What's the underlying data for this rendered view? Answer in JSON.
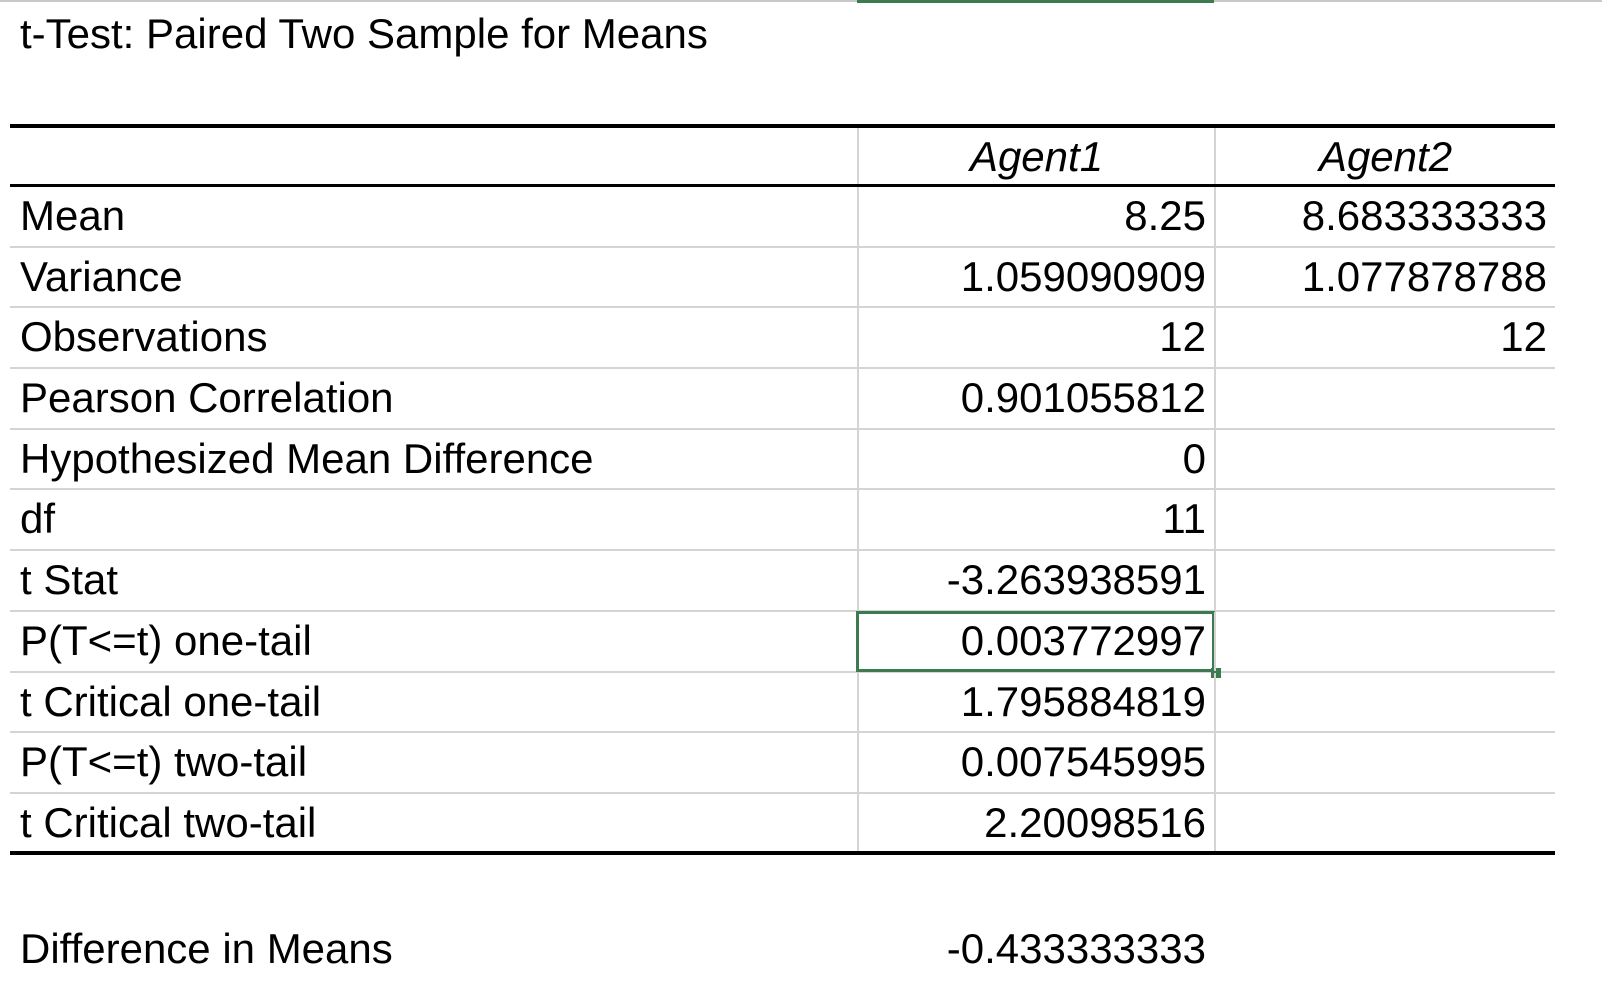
{
  "title": "t-Test: Paired Two Sample for Means",
  "columns": [
    "",
    "Agent1",
    "Agent2"
  ],
  "rows": [
    {
      "label": "Mean",
      "agent1": "8.25",
      "agent2": "8.683333333"
    },
    {
      "label": "Variance",
      "agent1": "1.059090909",
      "agent2": "1.077878788"
    },
    {
      "label": "Observations",
      "agent1": "12",
      "agent2": "12"
    },
    {
      "label": "Pearson Correlation",
      "agent1": "0.901055812",
      "agent2": ""
    },
    {
      "label": "Hypothesized Mean Difference",
      "agent1": "0",
      "agent2": ""
    },
    {
      "label": "df",
      "agent1": "11",
      "agent2": ""
    },
    {
      "label": "t Stat",
      "agent1": "-3.263938591",
      "agent2": ""
    },
    {
      "label": "P(T<=t) one-tail",
      "agent1": "0.003772997",
      "agent2": ""
    },
    {
      "label": "t Critical one-tail",
      "agent1": "1.795884819",
      "agent2": ""
    },
    {
      "label": "P(T<=t) two-tail",
      "agent1": "0.007545995",
      "agent2": ""
    },
    {
      "label": "t Critical two-tail",
      "agent1": "2.20098516",
      "agent2": ""
    }
  ],
  "selected_row": 7,
  "difference": {
    "label": "Difference in Means",
    "value": "-0.433333333"
  },
  "colors": {
    "selection": "#3d7a4f",
    "gridline": "#d4d4d4"
  }
}
